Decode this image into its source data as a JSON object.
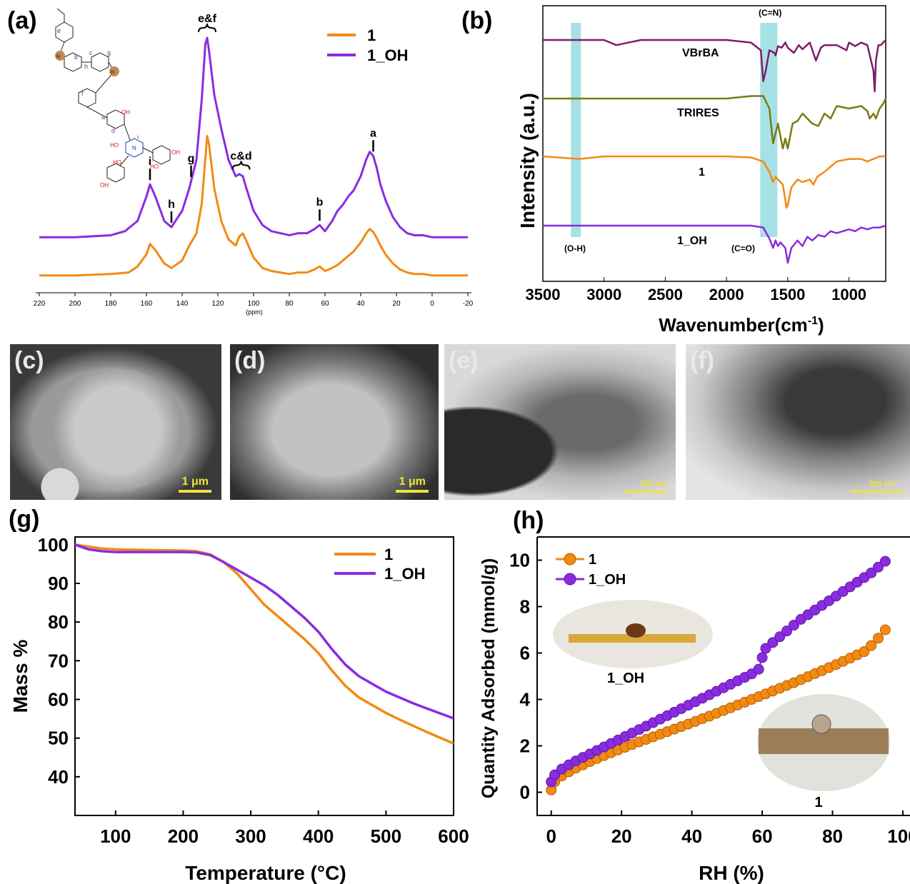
{
  "colors": {
    "orange": "#f28a12",
    "purple": "#8a2be2",
    "olive": "#7a7a12",
    "plum": "#7a1f6a",
    "teal": "#5cc9d2",
    "scalebar": "#f0e23a"
  },
  "panels": {
    "a": "(a)",
    "b": "(b)",
    "c": "(c)",
    "d": "(d)",
    "e": "(e)",
    "f": "(f)",
    "g": "(g)",
    "h": "(h)"
  },
  "micrographs": {
    "c": {
      "scale": "1 μm"
    },
    "d": {
      "scale": "1 μm"
    },
    "e": {
      "scale": "200 nm"
    },
    "f": {
      "scale": "200 nm"
    }
  },
  "structure": {
    "site_labels": [
      "a",
      "b",
      "c",
      "d",
      "e",
      "f",
      "g",
      "h",
      "i"
    ],
    "groups": [
      "OH",
      "HO",
      "Br",
      "N"
    ]
  },
  "chart_data": [
    {
      "id": "a",
      "type": "line",
      "xlabel": "(ppm)",
      "x_ticks": [
        220,
        200,
        180,
        160,
        140,
        120,
        100,
        80,
        60,
        40,
        20,
        0,
        -20
      ],
      "xlim": [
        222,
        -22
      ],
      "series": [
        {
          "name": "1",
          "color": "#f28a12",
          "x": [
            220,
            200,
            180,
            170,
            165,
            160,
            158,
            155,
            150,
            146,
            140,
            136,
            132,
            129,
            127,
            126,
            125,
            122,
            118,
            114,
            110,
            108,
            106,
            104,
            100,
            95,
            90,
            85,
            80,
            75,
            70,
            66,
            63,
            60,
            56,
            53,
            50,
            47,
            44,
            40,
            37,
            35,
            33,
            31,
            29,
            26,
            22,
            18,
            14,
            10,
            5,
            0,
            -5,
            -10,
            -15,
            -20
          ],
          "y": [
            0.02,
            0.02,
            0.03,
            0.04,
            0.08,
            0.16,
            0.23,
            0.19,
            0.1,
            0.07,
            0.12,
            0.22,
            0.3,
            0.5,
            0.8,
            0.95,
            0.9,
            0.6,
            0.38,
            0.26,
            0.22,
            0.28,
            0.3,
            0.25,
            0.14,
            0.07,
            0.05,
            0.04,
            0.03,
            0.04,
            0.04,
            0.06,
            0.08,
            0.05,
            0.07,
            0.09,
            0.12,
            0.15,
            0.18,
            0.24,
            0.3,
            0.33,
            0.31,
            0.27,
            0.22,
            0.16,
            0.1,
            0.06,
            0.04,
            0.03,
            0.03,
            0.02,
            0.02,
            0.02,
            0.02,
            0.02
          ]
        },
        {
          "name": "1_OH",
          "color": "#8a2be2",
          "x": [
            220,
            200,
            180,
            172,
            165,
            160,
            158,
            155,
            150,
            146,
            140,
            136,
            132,
            129,
            127,
            126,
            125,
            122,
            118,
            114,
            110,
            108,
            106,
            104,
            100,
            95,
            90,
            85,
            80,
            75,
            70,
            66,
            63,
            60,
            56,
            53,
            50,
            47,
            44,
            40,
            37,
            35,
            33,
            31,
            29,
            26,
            22,
            18,
            14,
            10,
            5,
            0,
            -5,
            -10,
            -15,
            -20
          ],
          "y": [
            0.02,
            0.02,
            0.03,
            0.05,
            0.1,
            0.22,
            0.28,
            0.22,
            0.1,
            0.07,
            0.15,
            0.26,
            0.4,
            0.7,
            0.97,
            1.0,
            0.94,
            0.72,
            0.55,
            0.4,
            0.32,
            0.33,
            0.32,
            0.26,
            0.15,
            0.08,
            0.05,
            0.04,
            0.03,
            0.04,
            0.04,
            0.06,
            0.08,
            0.05,
            0.1,
            0.15,
            0.18,
            0.22,
            0.25,
            0.32,
            0.4,
            0.44,
            0.42,
            0.36,
            0.28,
            0.2,
            0.12,
            0.07,
            0.04,
            0.03,
            0.03,
            0.02,
            0.02,
            0.02,
            0.02,
            0.02
          ]
        }
      ],
      "annotations": [
        {
          "label": "e&f",
          "x": 126
        },
        {
          "label": "c&d",
          "x": 107
        },
        {
          "label": "a",
          "x": 33
        },
        {
          "label": "i",
          "x": 158
        },
        {
          "label": "h",
          "x": 146
        },
        {
          "label": "g",
          "x": 135
        },
        {
          "label": "b",
          "x": 63
        }
      ],
      "legend": [
        "1",
        "1_OH"
      ]
    },
    {
      "id": "b",
      "type": "line",
      "xlabel": "Wavenumber(cm",
      "xlabel_sup": "-1",
      "xlabel_end": ")",
      "ylabel": "Intensity (a.u.)",
      "x_ticks": [
        3500,
        3000,
        2500,
        2000,
        1500,
        1000
      ],
      "xlim": [
        3500,
        700
      ],
      "series": [
        {
          "name": "VBrBA",
          "color": "#7a1f6a",
          "x": [
            3500,
            3200,
            3000,
            2900,
            2700,
            2000,
            1800,
            1720,
            1700,
            1680,
            1650,
            1610,
            1600,
            1580,
            1550,
            1520,
            1500,
            1450,
            1410,
            1380,
            1320,
            1270,
            1230,
            1200,
            1100,
            1020,
            1000,
            950,
            900,
            850,
            830,
            800,
            790,
            780,
            760,
            740,
            720,
            700
          ],
          "y": [
            0.0,
            0.0,
            0.0,
            0.1,
            0.0,
            0.0,
            0.05,
            0.2,
            0.8,
            0.6,
            0.2,
            0.25,
            0.3,
            0.12,
            0.15,
            0.05,
            0.15,
            0.25,
            0.1,
            0.18,
            0.05,
            0.4,
            0.15,
            0.1,
            0.1,
            0.2,
            0.05,
            0.12,
            0.05,
            0.1,
            0.3,
            0.6,
            1.0,
            0.4,
            0.1,
            0.1,
            0.05,
            0.0
          ]
        },
        {
          "name": "TRIRES",
          "color": "#7a7a12",
          "x": [
            3500,
            3000,
            2500,
            2000,
            1800,
            1700,
            1650,
            1620,
            1580,
            1540,
            1520,
            1500,
            1460,
            1420,
            1380,
            1340,
            1300,
            1250,
            1200,
            1150,
            1100,
            1000,
            900,
            850,
            830,
            800,
            780,
            750,
            720,
            700
          ],
          "y": [
            0.0,
            0.0,
            0.0,
            0.0,
            -0.05,
            -0.05,
            0.2,
            0.9,
            0.5,
            1.0,
            0.8,
            1.0,
            0.5,
            0.45,
            0.3,
            0.4,
            0.5,
            0.55,
            0.3,
            0.4,
            0.15,
            0.2,
            0.15,
            0.25,
            0.4,
            0.3,
            0.4,
            0.2,
            0.1,
            0.0
          ]
        },
        {
          "name": "1",
          "color": "#f28a12",
          "x": [
            3500,
            3200,
            3000,
            2500,
            2000,
            1800,
            1700,
            1650,
            1620,
            1600,
            1580,
            1540,
            1510,
            1500,
            1470,
            1420,
            1380,
            1320,
            1290,
            1260,
            1200,
            1150,
            1100,
            1000,
            900,
            850,
            800,
            750,
            700
          ],
          "y": [
            0.0,
            0.05,
            0.0,
            0.0,
            0.0,
            0.02,
            0.1,
            0.3,
            0.5,
            0.4,
            0.45,
            0.55,
            1.0,
            0.95,
            0.6,
            0.45,
            0.5,
            0.45,
            0.55,
            0.4,
            0.3,
            0.2,
            0.1,
            0.05,
            0.05,
            0.1,
            0.05,
            0.0,
            0.0
          ]
        },
        {
          "name": "1_OH",
          "color": "#8a2be2",
          "x": [
            3500,
            3200,
            3000,
            2500,
            2000,
            1800,
            1700,
            1650,
            1620,
            1600,
            1580,
            1560,
            1520,
            1500,
            1470,
            1420,
            1380,
            1340,
            1300,
            1250,
            1200,
            1150,
            1100,
            1000,
            950,
            900,
            850,
            800,
            750,
            700
          ],
          "y": [
            0.0,
            0.0,
            0.0,
            0.0,
            0.0,
            0.0,
            0.05,
            0.35,
            0.6,
            0.4,
            0.55,
            0.45,
            0.6,
            1.0,
            0.6,
            0.4,
            0.55,
            0.3,
            0.4,
            0.25,
            0.3,
            0.15,
            0.2,
            0.1,
            0.15,
            0.05,
            0.1,
            0.05,
            0.05,
            0.0
          ]
        }
      ],
      "highlights": [
        {
          "label": "(O-H)",
          "x": 3230
        },
        {
          "label": "(C=N)",
          "x": 1690
        },
        {
          "label": "(C=O)",
          "x": 1620
        }
      ]
    },
    {
      "id": "g",
      "type": "line",
      "xlabel": "Temperature (°C)",
      "ylabel": "Mass %",
      "xlim": [
        40,
        600
      ],
      "ylim": [
        30,
        102
      ],
      "x_ticks": [
        100,
        200,
        300,
        400,
        500,
        600
      ],
      "y_ticks": [
        40,
        50,
        60,
        70,
        80,
        90,
        100
      ],
      "series": [
        {
          "name": "1",
          "color": "#f28a12",
          "x": [
            40,
            60,
            80,
            100,
            150,
            200,
            220,
            240,
            260,
            280,
            300,
            320,
            340,
            360,
            380,
            400,
            420,
            440,
            460,
            480,
            500,
            520,
            540,
            560,
            580,
            600
          ],
          "y": [
            100,
            99.5,
            99,
            98.8,
            98.6,
            98.5,
            98.3,
            97.5,
            95.5,
            92.5,
            88.5,
            84.5,
            81.5,
            78.5,
            75.5,
            72,
            67.5,
            63.5,
            60.5,
            58.5,
            56.5,
            54.8,
            53.2,
            51.6,
            50.1,
            48.6
          ]
        },
        {
          "name": "1_OH",
          "color": "#8a2be2",
          "x": [
            40,
            60,
            80,
            100,
            150,
            200,
            220,
            240,
            260,
            280,
            300,
            320,
            340,
            360,
            380,
            400,
            420,
            440,
            460,
            480,
            500,
            520,
            540,
            560,
            580,
            600
          ],
          "y": [
            100,
            98.8,
            98.3,
            98.1,
            98.1,
            98.1,
            98,
            97.3,
            95.5,
            93.5,
            91.5,
            89.5,
            87,
            84,
            81,
            77.5,
            73,
            69,
            66,
            64,
            62,
            60.5,
            59,
            57.7,
            56.4,
            55.1
          ]
        }
      ],
      "legend": [
        "1",
        "1_OH"
      ]
    },
    {
      "id": "h",
      "type": "scatter",
      "xlabel": "RH (%)",
      "ylabel": "Quantity Adsorbed (mmol/g)",
      "xlim": [
        -4,
        100
      ],
      "ylim": [
        -1,
        11
      ],
      "x_ticks": [
        0,
        20,
        40,
        60,
        80,
        100
      ],
      "y_ticks": [
        0,
        2,
        4,
        6,
        8,
        10
      ],
      "series": [
        {
          "name": "1",
          "color": "#f28a12",
          "x": [
            0,
            1,
            3,
            5,
            7,
            9,
            11,
            13,
            15,
            17,
            19,
            21,
            23,
            25,
            27,
            29,
            31,
            33,
            35,
            37,
            39,
            41,
            43,
            45,
            47,
            49,
            51,
            53,
            55,
            57,
            59,
            61,
            63,
            65,
            67,
            69,
            71,
            73,
            75,
            77,
            79,
            81,
            83,
            85,
            87,
            89,
            91,
            93,
            95
          ],
          "y": [
            0.1,
            0.45,
            0.7,
            0.88,
            1.04,
            1.18,
            1.32,
            1.45,
            1.58,
            1.7,
            1.82,
            1.94,
            2.06,
            2.17,
            2.28,
            2.39,
            2.5,
            2.61,
            2.72,
            2.83,
            2.94,
            3.05,
            3.17,
            3.28,
            3.4,
            3.52,
            3.64,
            3.76,
            3.88,
            4.0,
            4.12,
            4.24,
            4.36,
            4.48,
            4.6,
            4.72,
            4.85,
            4.98,
            5.11,
            5.24,
            5.37,
            5.5,
            5.64,
            5.78,
            5.92,
            6.06,
            6.32,
            6.64,
            7.0
          ]
        },
        {
          "name": "1_OH",
          "color": "#8a2be2",
          "x": [
            0,
            1,
            3,
            5,
            7,
            9,
            11,
            13,
            15,
            17,
            19,
            21,
            23,
            25,
            27,
            29,
            31,
            33,
            35,
            37,
            39,
            41,
            43,
            45,
            47,
            49,
            51,
            53,
            55,
            57,
            59,
            60,
            61,
            63,
            65,
            67,
            69,
            71,
            73,
            75,
            77,
            79,
            81,
            83,
            85,
            87,
            89,
            91,
            93,
            95
          ],
          "y": [
            0.45,
            0.75,
            1.0,
            1.18,
            1.35,
            1.5,
            1.65,
            1.8,
            1.95,
            2.1,
            2.25,
            2.4,
            2.55,
            2.7,
            2.85,
            3.0,
            3.15,
            3.3,
            3.45,
            3.6,
            3.75,
            3.9,
            4.05,
            4.2,
            4.35,
            4.5,
            4.65,
            4.8,
            4.95,
            5.1,
            5.3,
            5.8,
            6.2,
            6.45,
            6.7,
            6.95,
            7.2,
            7.45,
            7.65,
            7.85,
            8.05,
            8.25,
            8.45,
            8.65,
            8.85,
            9.05,
            9.25,
            9.45,
            9.7,
            9.95
          ]
        }
      ],
      "legend": [
        "1",
        "1_OH"
      ],
      "inset_labels": [
        "1_OH",
        "1"
      ]
    }
  ]
}
